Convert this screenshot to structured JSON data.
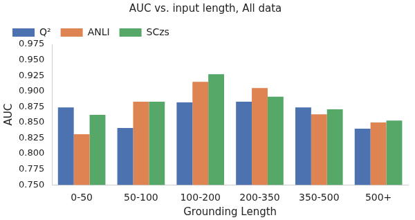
{
  "chart_data": {
    "type": "bar",
    "title": "AUC vs. input length, All data",
    "x_label": "Grounding Length",
    "y_label": "AUC",
    "categories": [
      "0-50",
      "50-100",
      "100-200",
      "200-350",
      "350-500",
      "500+"
    ],
    "series": [
      {
        "name": "Q²",
        "color": "#4c72b0",
        "values": [
          0.874,
          0.841,
          0.882,
          0.883,
          0.874,
          0.84
        ]
      },
      {
        "name": "ANLI",
        "color": "#dd8452",
        "values": [
          0.831,
          0.883,
          0.915,
          0.905,
          0.863,
          0.85
        ]
      },
      {
        "name": "SCzs",
        "color": "#55a868",
        "values": [
          0.862,
          0.883,
          0.927,
          0.891,
          0.871,
          0.853
        ]
      }
    ],
    "ylim": [
      0.75,
      0.975
    ],
    "yticks": [
      {
        "value": 0.75,
        "label": "0.750"
      },
      0.775,
      {
        "value": 0.8,
        "label": "0.800"
      },
      0.825,
      {
        "value": 0.85,
        "label": "0.850"
      },
      0.875,
      {
        "value": 0.9,
        "label": "0.900"
      },
      0.925,
      {
        "value": 0.95,
        "label": "0.950"
      },
      0.975
    ],
    "legend": "upper left",
    "grid": false
  }
}
